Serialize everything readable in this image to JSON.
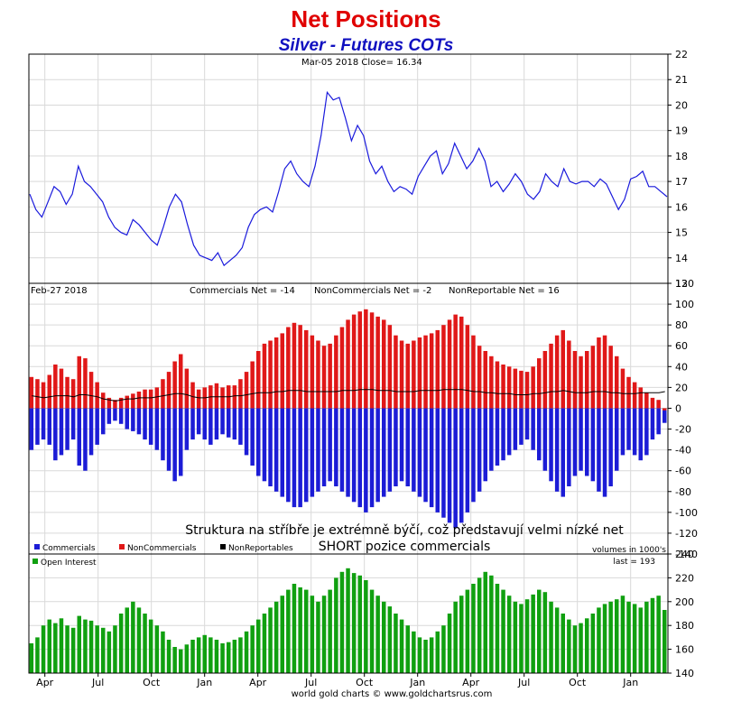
{
  "header": {
    "title": "Net Positions",
    "subtitle": "Silver - Futures COTs"
  },
  "price_panel": {
    "info": "Mar-05  2018  Close= 16.34"
  },
  "net_panel": {
    "date": "Feb-27  2018",
    "commercials_label": "Commercials Net = -14",
    "noncommercials_label": "NonCommercials Net = -2",
    "nonreportable_label": "NonReportable Net = 16",
    "annotation_line1": "Struktura na stříbře je extrémně býčí, což představují velmi nízké net",
    "annotation_line2": "SHORT pozice commercials",
    "legend": [
      "Commercials",
      "NonCommercials",
      "NonReportables"
    ],
    "volumes_note": "volumes in 1000's"
  },
  "oi_panel": {
    "legend": "Open Interest",
    "last_label": "last = 193"
  },
  "footer": {
    "credit": "world gold charts © www.goldchartsrus.com"
  },
  "colors": {
    "price_line": "#1a1adc",
    "commercials": "#1c1cd6",
    "noncommercials": "#e01818",
    "nonreportables": "#000000",
    "open_interest": "#10a010",
    "grid": "#d9d9d9"
  },
  "chart_data": [
    {
      "type": "line",
      "title": "Silver - Futures COTs",
      "ylim": [
        13,
        22
      ],
      "yticks": [
        13,
        14,
        15,
        16,
        17,
        18,
        19,
        20,
        21,
        22
      ],
      "x_ticks": [
        "Apr",
        "Jul",
        "Oct",
        "Jan",
        "Apr",
        "Jul",
        "Oct",
        "Jan",
        "Apr",
        "Jul",
        "Oct",
        "Jan"
      ],
      "series": [
        {
          "name": "Close",
          "values": [
            16.5,
            15.9,
            15.6,
            16.2,
            16.8,
            16.6,
            16.1,
            16.5,
            17.6,
            17.0,
            16.8,
            16.5,
            16.2,
            15.6,
            15.2,
            15.0,
            14.9,
            15.5,
            15.3,
            15.0,
            14.7,
            14.5,
            15.2,
            16.0,
            16.5,
            16.2,
            15.3,
            14.5,
            14.1,
            14.0,
            13.9,
            14.2,
            13.7,
            13.9,
            14.1,
            14.4,
            15.2,
            15.7,
            15.9,
            16.0,
            15.8,
            16.6,
            17.5,
            17.8,
            17.3,
            17.0,
            16.8,
            17.6,
            18.8,
            20.5,
            20.2,
            20.3,
            19.5,
            18.6,
            19.2,
            18.8,
            17.8,
            17.3,
            17.6,
            17.0,
            16.6,
            16.8,
            16.7,
            16.5,
            17.2,
            17.6,
            18.0,
            18.2,
            17.3,
            17.7,
            18.5,
            18.0,
            17.5,
            17.8,
            18.3,
            17.8,
            16.8,
            17.0,
            16.6,
            16.9,
            17.3,
            17.0,
            16.5,
            16.3,
            16.6,
            17.3,
            17.0,
            16.8,
            17.5,
            17.0,
            16.9,
            17.0,
            17.0,
            16.8,
            17.1,
            16.9,
            16.4,
            15.9,
            16.3,
            17.1,
            17.2,
            17.4,
            16.8,
            16.8,
            16.6,
            16.4
          ]
        }
      ]
    },
    {
      "type": "bar",
      "title": "",
      "ylim": [
        -140,
        120
      ],
      "yticks": [
        -140,
        -120,
        -100,
        -80,
        -60,
        -40,
        -20,
        0,
        20,
        40,
        60,
        80,
        100,
        120
      ],
      "x_ticks": [
        "Apr",
        "Jul",
        "Oct",
        "Jan",
        "Apr",
        "Jul",
        "Oct",
        "Jan",
        "Apr",
        "Jul",
        "Oct",
        "Jan"
      ],
      "series": [
        {
          "name": "Commercials",
          "values": [
            -40,
            -35,
            -30,
            -35,
            -50,
            -45,
            -40,
            -30,
            -55,
            -60,
            -45,
            -35,
            -25,
            -15,
            -12,
            -15,
            -20,
            -22,
            -25,
            -30,
            -35,
            -40,
            -50,
            -60,
            -70,
            -65,
            -40,
            -30,
            -25,
            -30,
            -35,
            -30,
            -25,
            -28,
            -30,
            -35,
            -45,
            -55,
            -65,
            -70,
            -75,
            -80,
            -85,
            -90,
            -95,
            -95,
            -90,
            -85,
            -80,
            -75,
            -70,
            -75,
            -80,
            -85,
            -90,
            -95,
            -100,
            -95,
            -90,
            -85,
            -80,
            -75,
            -70,
            -75,
            -80,
            -85,
            -90,
            -95,
            -100,
            -105,
            -110,
            -115,
            -110,
            -100,
            -90,
            -80,
            -70,
            -60,
            -55,
            -50,
            -45,
            -40,
            -35,
            -30,
            -40,
            -50,
            -60,
            -70,
            -80,
            -85,
            -75,
            -65,
            -60,
            -65,
            -70,
            -80,
            -85,
            -75,
            -60,
            -45,
            -40,
            -45,
            -50,
            -45,
            -30,
            -25,
            -14
          ]
        },
        {
          "name": "NonCommercials",
          "values": [
            30,
            28,
            25,
            32,
            42,
            38,
            30,
            28,
            50,
            48,
            35,
            25,
            15,
            10,
            8,
            10,
            12,
            14,
            16,
            18,
            18,
            20,
            28,
            35,
            45,
            52,
            38,
            25,
            18,
            20,
            22,
            24,
            20,
            22,
            22,
            28,
            35,
            45,
            55,
            62,
            65,
            68,
            72,
            78,
            82,
            80,
            75,
            70,
            65,
            60,
            62,
            70,
            78,
            85,
            90,
            93,
            95,
            92,
            88,
            85,
            80,
            70,
            65,
            62,
            65,
            68,
            70,
            72,
            75,
            80,
            85,
            90,
            88,
            80,
            70,
            60,
            55,
            50,
            45,
            42,
            40,
            38,
            36,
            35,
            40,
            48,
            55,
            62,
            70,
            75,
            65,
            55,
            50,
            55,
            60,
            68,
            70,
            60,
            50,
            38,
            30,
            25,
            20,
            15,
            10,
            8,
            -2
          ]
        },
        {
          "name": "NonReportables",
          "values": [
            12,
            11,
            10,
            11,
            12,
            12,
            12,
            11,
            13,
            13,
            12,
            11,
            9,
            8,
            7,
            8,
            9,
            9,
            10,
            10,
            10,
            11,
            12,
            13,
            14,
            14,
            13,
            11,
            10,
            10,
            11,
            11,
            11,
            11,
            12,
            12,
            13,
            14,
            15,
            15,
            15,
            16,
            16,
            17,
            17,
            17,
            16,
            16,
            16,
            16,
            16,
            16,
            17,
            17,
            17,
            18,
            18,
            18,
            17,
            17,
            17,
            16,
            16,
            16,
            16,
            17,
            17,
            17,
            17,
            18,
            18,
            18,
            18,
            17,
            16,
            16,
            15,
            15,
            14,
            14,
            14,
            13,
            13,
            13,
            14,
            14,
            15,
            16,
            16,
            17,
            16,
            15,
            15,
            15,
            16,
            16,
            16,
            15,
            15,
            14,
            14,
            14,
            15,
            15,
            15,
            15,
            16
          ]
        }
      ]
    },
    {
      "type": "bar",
      "title": "Open Interest",
      "ylim": [
        140,
        240
      ],
      "yticks": [
        140,
        160,
        180,
        200,
        220,
        240
      ],
      "x_ticks": [
        "Apr",
        "Jul",
        "Oct",
        "Jan",
        "Apr",
        "Jul",
        "Oct",
        "Jan",
        "Apr",
        "Jul",
        "Oct",
        "Jan"
      ],
      "series": [
        {
          "name": "Open Interest",
          "values": [
            165,
            170,
            180,
            185,
            182,
            186,
            180,
            178,
            188,
            185,
            184,
            180,
            178,
            175,
            180,
            190,
            195,
            200,
            195,
            190,
            185,
            180,
            175,
            168,
            162,
            160,
            164,
            168,
            170,
            172,
            170,
            168,
            165,
            166,
            168,
            170,
            175,
            180,
            185,
            190,
            195,
            200,
            205,
            210,
            215,
            212,
            210,
            205,
            200,
            205,
            210,
            220,
            225,
            228,
            224,
            222,
            218,
            210,
            205,
            200,
            196,
            190,
            185,
            180,
            175,
            170,
            168,
            170,
            175,
            180,
            190,
            200,
            205,
            210,
            215,
            220,
            225,
            222,
            215,
            210,
            205,
            200,
            198,
            202,
            206,
            210,
            208,
            200,
            195,
            190,
            185,
            180,
            182,
            186,
            190,
            195,
            198,
            200,
            202,
            205,
            200,
            198,
            195,
            200,
            203,
            205,
            193
          ]
        }
      ]
    }
  ]
}
